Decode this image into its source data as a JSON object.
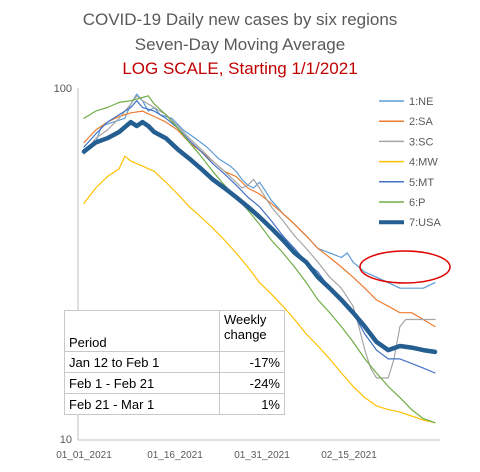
{
  "chart_data": {
    "type": "line",
    "title": "COVID-19 Daily new cases by six regions",
    "subtitle": "Seven-Day Moving Average",
    "subtitle2": "LOG SCALE, Starting 1/1/2021",
    "y_scale": "log",
    "ylim": [
      10,
      100
    ],
    "y_ticks": [
      "100",
      "10"
    ],
    "x_ticks": [
      "01_01_2021",
      "01_16_2021",
      "01_31_2021",
      "02_15_2021"
    ],
    "x_start_date": "2021-01-01",
    "legend_position": "right",
    "grid": false,
    "series": [
      {
        "name": "1:NE",
        "color": "#5b9bd5",
        "width": 1.2,
        "values": [
          [
            0,
            65
          ],
          [
            2,
            70
          ],
          [
            3,
            78
          ],
          [
            5,
            80
          ],
          [
            7,
            82
          ],
          [
            8,
            90
          ],
          [
            9,
            96
          ],
          [
            10,
            92
          ],
          [
            11,
            86
          ],
          [
            12,
            88
          ],
          [
            13,
            84
          ],
          [
            15,
            82
          ],
          [
            17,
            76
          ],
          [
            19,
            72
          ],
          [
            21,
            68
          ],
          [
            23,
            63
          ],
          [
            25,
            60
          ],
          [
            26,
            58
          ],
          [
            27,
            55
          ],
          [
            28,
            53
          ],
          [
            29,
            52
          ],
          [
            30,
            54
          ],
          [
            31,
            51
          ],
          [
            32,
            48
          ],
          [
            34,
            44
          ],
          [
            36,
            41
          ],
          [
            38,
            38
          ],
          [
            40,
            35
          ],
          [
            42,
            34
          ],
          [
            44,
            33
          ],
          [
            45,
            34
          ],
          [
            46,
            32
          ],
          [
            48,
            30
          ],
          [
            50,
            29
          ],
          [
            52,
            28
          ],
          [
            54,
            27
          ],
          [
            56,
            27
          ],
          [
            58,
            27
          ],
          [
            60,
            28
          ]
        ]
      },
      {
        "name": "2:SA",
        "color": "#ed7d31",
        "width": 1.2,
        "values": [
          [
            0,
            70
          ],
          [
            2,
            76
          ],
          [
            4,
            80
          ],
          [
            6,
            83
          ],
          [
            8,
            85
          ],
          [
            10,
            86
          ],
          [
            12,
            83
          ],
          [
            14,
            80
          ],
          [
            16,
            76
          ],
          [
            18,
            70
          ],
          [
            20,
            66
          ],
          [
            22,
            62
          ],
          [
            24,
            58
          ],
          [
            26,
            56
          ],
          [
            28,
            52
          ],
          [
            30,
            50
          ],
          [
            32,
            47
          ],
          [
            34,
            44
          ],
          [
            36,
            41
          ],
          [
            38,
            38
          ],
          [
            40,
            35
          ],
          [
            42,
            33
          ],
          [
            44,
            31
          ],
          [
            46,
            29
          ],
          [
            48,
            27
          ],
          [
            50,
            25
          ],
          [
            52,
            24
          ],
          [
            54,
            23
          ],
          [
            56,
            23
          ],
          [
            58,
            22
          ],
          [
            60,
            21
          ]
        ]
      },
      {
        "name": "3:SC",
        "color": "#a5a5a5",
        "width": 1.2,
        "values": [
          [
            0,
            65
          ],
          [
            2,
            72
          ],
          [
            4,
            76
          ],
          [
            6,
            82
          ],
          [
            8,
            90
          ],
          [
            9,
            95
          ],
          [
            10,
            92
          ],
          [
            12,
            88
          ],
          [
            14,
            84
          ],
          [
            16,
            78
          ],
          [
            18,
            72
          ],
          [
            20,
            67
          ],
          [
            22,
            62
          ],
          [
            24,
            58
          ],
          [
            26,
            54
          ],
          [
            27,
            52
          ],
          [
            28,
            53
          ],
          [
            29,
            55
          ],
          [
            30,
            52
          ],
          [
            32,
            46
          ],
          [
            34,
            42
          ],
          [
            36,
            38
          ],
          [
            38,
            35
          ],
          [
            40,
            32
          ],
          [
            42,
            29
          ],
          [
            44,
            27
          ],
          [
            46,
            24
          ],
          [
            47,
            21
          ],
          [
            48,
            18
          ],
          [
            49,
            16
          ],
          [
            50,
            15
          ],
          [
            51,
            15
          ],
          [
            52,
            15
          ],
          [
            53,
            17
          ],
          [
            54,
            21
          ],
          [
            55,
            22
          ],
          [
            56,
            22
          ],
          [
            58,
            22
          ],
          [
            60,
            22
          ]
        ]
      },
      {
        "name": "4:MW",
        "color": "#ffc000",
        "width": 1.2,
        "values": [
          [
            0,
            47
          ],
          [
            2,
            52
          ],
          [
            4,
            56
          ],
          [
            6,
            59
          ],
          [
            7,
            64
          ],
          [
            8,
            62
          ],
          [
            10,
            60
          ],
          [
            12,
            58
          ],
          [
            14,
            54
          ],
          [
            16,
            50
          ],
          [
            18,
            46
          ],
          [
            20,
            43
          ],
          [
            22,
            40
          ],
          [
            24,
            37
          ],
          [
            26,
            34
          ],
          [
            28,
            31
          ],
          [
            30,
            28
          ],
          [
            32,
            26
          ],
          [
            34,
            24
          ],
          [
            36,
            22
          ],
          [
            38,
            20
          ],
          [
            40,
            18.5
          ],
          [
            42,
            17
          ],
          [
            44,
            15.5
          ],
          [
            46,
            14.2
          ],
          [
            48,
            13.2
          ],
          [
            50,
            12.5
          ],
          [
            52,
            12.2
          ],
          [
            54,
            12
          ],
          [
            56,
            11.7
          ],
          [
            58,
            11.4
          ],
          [
            60,
            11.2
          ]
        ]
      },
      {
        "name": "5:MT",
        "color": "#4472c4",
        "width": 1.2,
        "values": [
          [
            0,
            68
          ],
          [
            2,
            74
          ],
          [
            4,
            80
          ],
          [
            6,
            84
          ],
          [
            8,
            88
          ],
          [
            9,
            92
          ],
          [
            10,
            88
          ],
          [
            12,
            86
          ],
          [
            14,
            82
          ],
          [
            16,
            77
          ],
          [
            18,
            71
          ],
          [
            20,
            66
          ],
          [
            22,
            61
          ],
          [
            24,
            57
          ],
          [
            26,
            53
          ],
          [
            28,
            49
          ],
          [
            30,
            46
          ],
          [
            32,
            42
          ],
          [
            34,
            38
          ],
          [
            36,
            35
          ],
          [
            38,
            32
          ],
          [
            40,
            30
          ],
          [
            42,
            27
          ],
          [
            44,
            25
          ],
          [
            46,
            23
          ],
          [
            48,
            20
          ],
          [
            50,
            18
          ],
          [
            52,
            17
          ],
          [
            54,
            17
          ],
          [
            56,
            16.5
          ],
          [
            58,
            16
          ],
          [
            60,
            15.5
          ]
        ]
      },
      {
        "name": "6:P",
        "color": "#70ad47",
        "width": 1.2,
        "values": [
          [
            0,
            82
          ],
          [
            2,
            86
          ],
          [
            4,
            88
          ],
          [
            6,
            91
          ],
          [
            8,
            92
          ],
          [
            10,
            94
          ],
          [
            11,
            95
          ],
          [
            12,
            90
          ],
          [
            14,
            84
          ],
          [
            16,
            77
          ],
          [
            18,
            70
          ],
          [
            20,
            64
          ],
          [
            22,
            58
          ],
          [
            24,
            53
          ],
          [
            26,
            49
          ],
          [
            28,
            45
          ],
          [
            30,
            41
          ],
          [
            32,
            37
          ],
          [
            34,
            34
          ],
          [
            36,
            31
          ],
          [
            38,
            28
          ],
          [
            40,
            25
          ],
          [
            42,
            23
          ],
          [
            44,
            21
          ],
          [
            46,
            19
          ],
          [
            48,
            17
          ],
          [
            50,
            15.5
          ],
          [
            52,
            14.2
          ],
          [
            54,
            13.2
          ],
          [
            56,
            12.2
          ],
          [
            58,
            11.5
          ],
          [
            60,
            11.2
          ]
        ]
      },
      {
        "name": "7:USA",
        "color": "#255e91",
        "width": 4.5,
        "values": [
          [
            0,
            66
          ],
          [
            2,
            70
          ],
          [
            4,
            72
          ],
          [
            6,
            75
          ],
          [
            8,
            80
          ],
          [
            9,
            78
          ],
          [
            10,
            80
          ],
          [
            11,
            78
          ],
          [
            12,
            75
          ],
          [
            14,
            72
          ],
          [
            16,
            67
          ],
          [
            18,
            63
          ],
          [
            20,
            59
          ],
          [
            22,
            55
          ],
          [
            24,
            52
          ],
          [
            26,
            49
          ],
          [
            28,
            46
          ],
          [
            30,
            43
          ],
          [
            32,
            40
          ],
          [
            34,
            37
          ],
          [
            36,
            34
          ],
          [
            38,
            32
          ],
          [
            40,
            29
          ],
          [
            42,
            27
          ],
          [
            44,
            25
          ],
          [
            46,
            23
          ],
          [
            48,
            21
          ],
          [
            50,
            19
          ],
          [
            52,
            18
          ],
          [
            54,
            18.5
          ],
          [
            56,
            18.3
          ],
          [
            58,
            18
          ],
          [
            60,
            17.8
          ]
        ]
      }
    ],
    "annotation": "red-ellipse"
  },
  "table": {
    "header": [
      "Period",
      "Weekly change"
    ],
    "header_period": "Period",
    "header_change_1": "Weekly",
    "header_change_2": "change",
    "rows": [
      {
        "period": "Jan 12 to Feb 1",
        "change": "-17%"
      },
      {
        "period": "Feb 1 - Feb 21",
        "change": "-24%"
      },
      {
        "period": "Feb 21 - Mar 1",
        "change": "1%"
      }
    ]
  }
}
